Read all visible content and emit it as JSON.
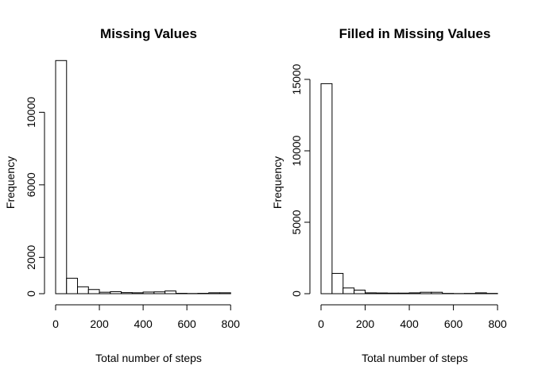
{
  "chart_data": [
    {
      "type": "bar",
      "title": "Missing Values",
      "xlabel": "Total number of steps",
      "ylabel": "Frequency",
      "bin_width": 50,
      "x_range": [
        0,
        800
      ],
      "xlim": [
        0,
        850
      ],
      "ylim": [
        0,
        12600
      ],
      "x_ticks": [
        0,
        200,
        400,
        600,
        800
      ],
      "y_ticks": [
        0,
        2000,
        6000,
        10000
      ],
      "values": [
        12850,
        850,
        380,
        230,
        80,
        110,
        60,
        50,
        90,
        100,
        150,
        20,
        10,
        20,
        50,
        50
      ],
      "grid": false,
      "legend": "none"
    },
    {
      "type": "bar",
      "title": "Filled in Missing Values",
      "xlabel": "Total number of steps",
      "ylabel": "Frequency",
      "bin_width": 50,
      "x_range": [
        0,
        800
      ],
      "xlim": [
        0,
        850
      ],
      "ylim": [
        0,
        16000
      ],
      "x_ticks": [
        0,
        200,
        400,
        600,
        800
      ],
      "y_ticks": [
        0,
        5000,
        10000,
        15000
      ],
      "values": [
        14700,
        1420,
        400,
        250,
        60,
        50,
        40,
        40,
        60,
        100,
        100,
        20,
        10,
        20,
        60,
        20
      ],
      "grid": false,
      "legend": "none"
    }
  ]
}
